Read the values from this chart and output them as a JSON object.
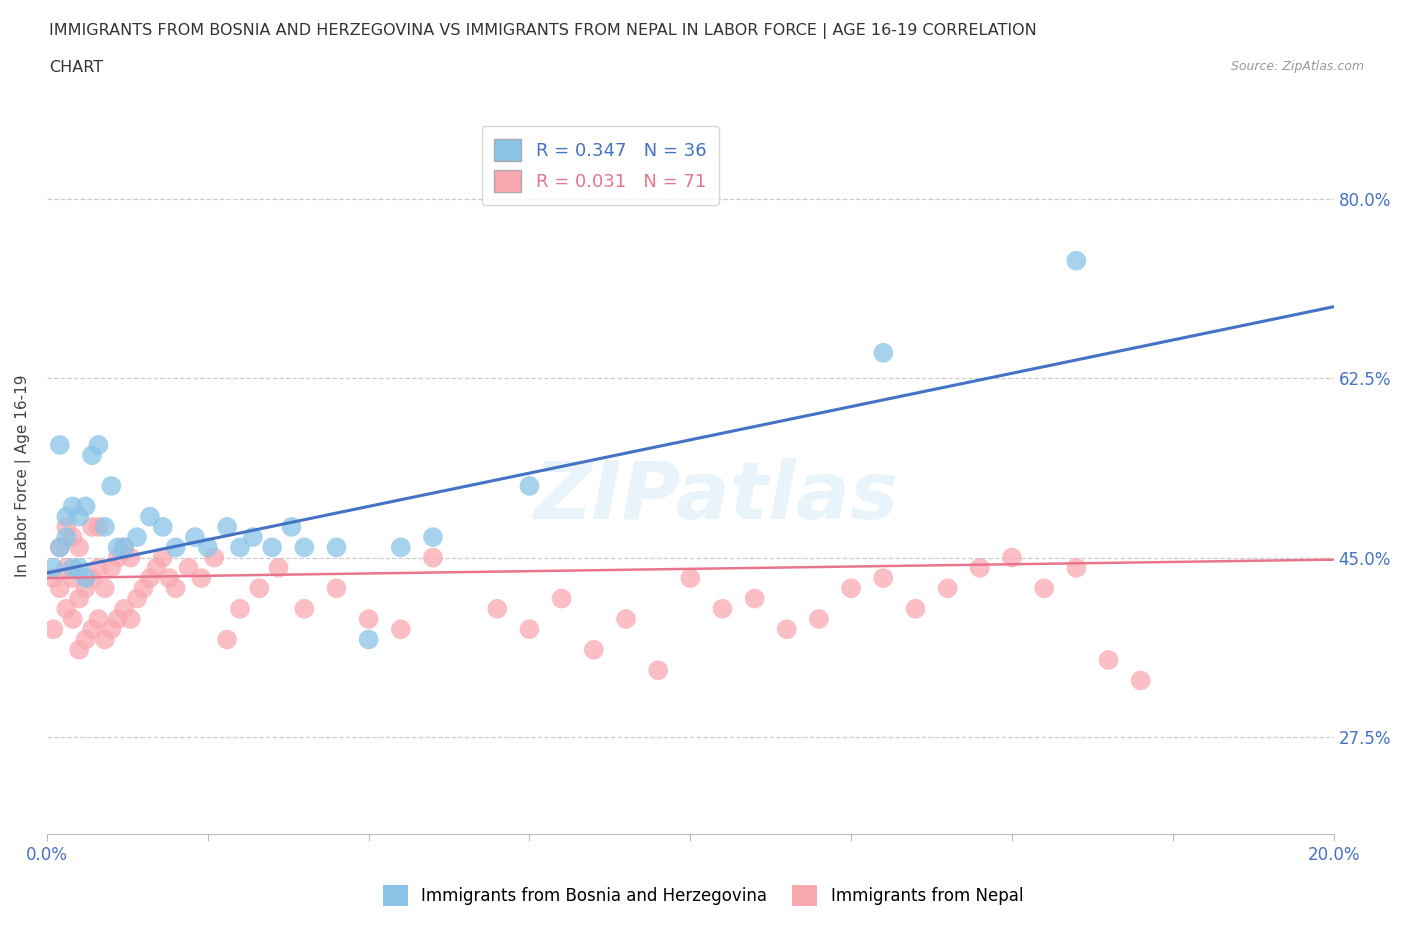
{
  "title_line1": "IMMIGRANTS FROM BOSNIA AND HERZEGOVINA VS IMMIGRANTS FROM NEPAL IN LABOR FORCE | AGE 16-19 CORRELATION",
  "title_line2": "CHART",
  "source": "Source: ZipAtlas.com",
  "ylabel": "In Labor Force | Age 16-19",
  "xlim": [
    0.0,
    0.2
  ],
  "ylim": [
    0.18,
    0.88
  ],
  "xticks": [
    0.0,
    0.025,
    0.05,
    0.075,
    0.1,
    0.125,
    0.15,
    0.175,
    0.2
  ],
  "ytick_labels": [
    "27.5%",
    "45.0%",
    "62.5%",
    "80.0%"
  ],
  "yticks": [
    0.275,
    0.45,
    0.625,
    0.8
  ],
  "bosnia_color": "#89c4e8",
  "nepal_color": "#f9a8b0",
  "bosnia_line_color": "#4472C4",
  "nepal_line_color": "#e8758a",
  "legend_R_bosnia": "R = 0.347",
  "legend_N_bosnia": "N = 36",
  "legend_R_nepal": "R = 0.031",
  "legend_N_nepal": "N = 71",
  "watermark": "ZIPatlas",
  "bosnia_x": [
    0.001,
    0.002,
    0.002,
    0.003,
    0.003,
    0.004,
    0.004,
    0.005,
    0.005,
    0.006,
    0.006,
    0.007,
    0.008,
    0.009,
    0.01,
    0.011,
    0.012,
    0.014,
    0.016,
    0.018,
    0.02,
    0.023,
    0.025,
    0.028,
    0.03,
    0.032,
    0.035,
    0.038,
    0.04,
    0.045,
    0.05,
    0.055,
    0.06,
    0.075,
    0.13,
    0.16
  ],
  "bosnia_y": [
    0.44,
    0.56,
    0.46,
    0.47,
    0.49,
    0.44,
    0.5,
    0.44,
    0.49,
    0.43,
    0.5,
    0.55,
    0.56,
    0.48,
    0.52,
    0.46,
    0.46,
    0.47,
    0.49,
    0.48,
    0.46,
    0.47,
    0.46,
    0.48,
    0.46,
    0.47,
    0.46,
    0.48,
    0.46,
    0.46,
    0.37,
    0.46,
    0.47,
    0.52,
    0.65,
    0.74
  ],
  "nepal_x": [
    0.001,
    0.001,
    0.002,
    0.002,
    0.003,
    0.003,
    0.003,
    0.004,
    0.004,
    0.004,
    0.005,
    0.005,
    0.005,
    0.006,
    0.006,
    0.007,
    0.007,
    0.007,
    0.008,
    0.008,
    0.008,
    0.009,
    0.009,
    0.01,
    0.01,
    0.011,
    0.011,
    0.012,
    0.012,
    0.013,
    0.013,
    0.014,
    0.015,
    0.016,
    0.017,
    0.018,
    0.019,
    0.02,
    0.022,
    0.024,
    0.026,
    0.028,
    0.03,
    0.033,
    0.036,
    0.04,
    0.045,
    0.05,
    0.055,
    0.06,
    0.07,
    0.08,
    0.09,
    0.1,
    0.11,
    0.12,
    0.13,
    0.14,
    0.15,
    0.16,
    0.165,
    0.17,
    0.075,
    0.085,
    0.095,
    0.105,
    0.115,
    0.125,
    0.135,
    0.145,
    0.155
  ],
  "nepal_y": [
    0.43,
    0.38,
    0.42,
    0.46,
    0.4,
    0.44,
    0.48,
    0.39,
    0.43,
    0.47,
    0.36,
    0.41,
    0.46,
    0.37,
    0.42,
    0.38,
    0.43,
    0.48,
    0.39,
    0.44,
    0.48,
    0.37,
    0.42,
    0.38,
    0.44,
    0.39,
    0.45,
    0.4,
    0.46,
    0.39,
    0.45,
    0.41,
    0.42,
    0.43,
    0.44,
    0.45,
    0.43,
    0.42,
    0.44,
    0.43,
    0.45,
    0.37,
    0.4,
    0.42,
    0.44,
    0.4,
    0.42,
    0.39,
    0.38,
    0.45,
    0.4,
    0.41,
    0.39,
    0.43,
    0.41,
    0.39,
    0.43,
    0.42,
    0.45,
    0.44,
    0.35,
    0.33,
    0.38,
    0.36,
    0.34,
    0.4,
    0.38,
    0.42,
    0.4,
    0.44,
    0.42
  ],
  "bosnia_trend_x": [
    0.0,
    0.2
  ],
  "bosnia_trend_y": [
    0.435,
    0.695
  ],
  "nepal_trend_x": [
    0.0,
    0.2
  ],
  "nepal_trend_y": [
    0.43,
    0.448
  ]
}
